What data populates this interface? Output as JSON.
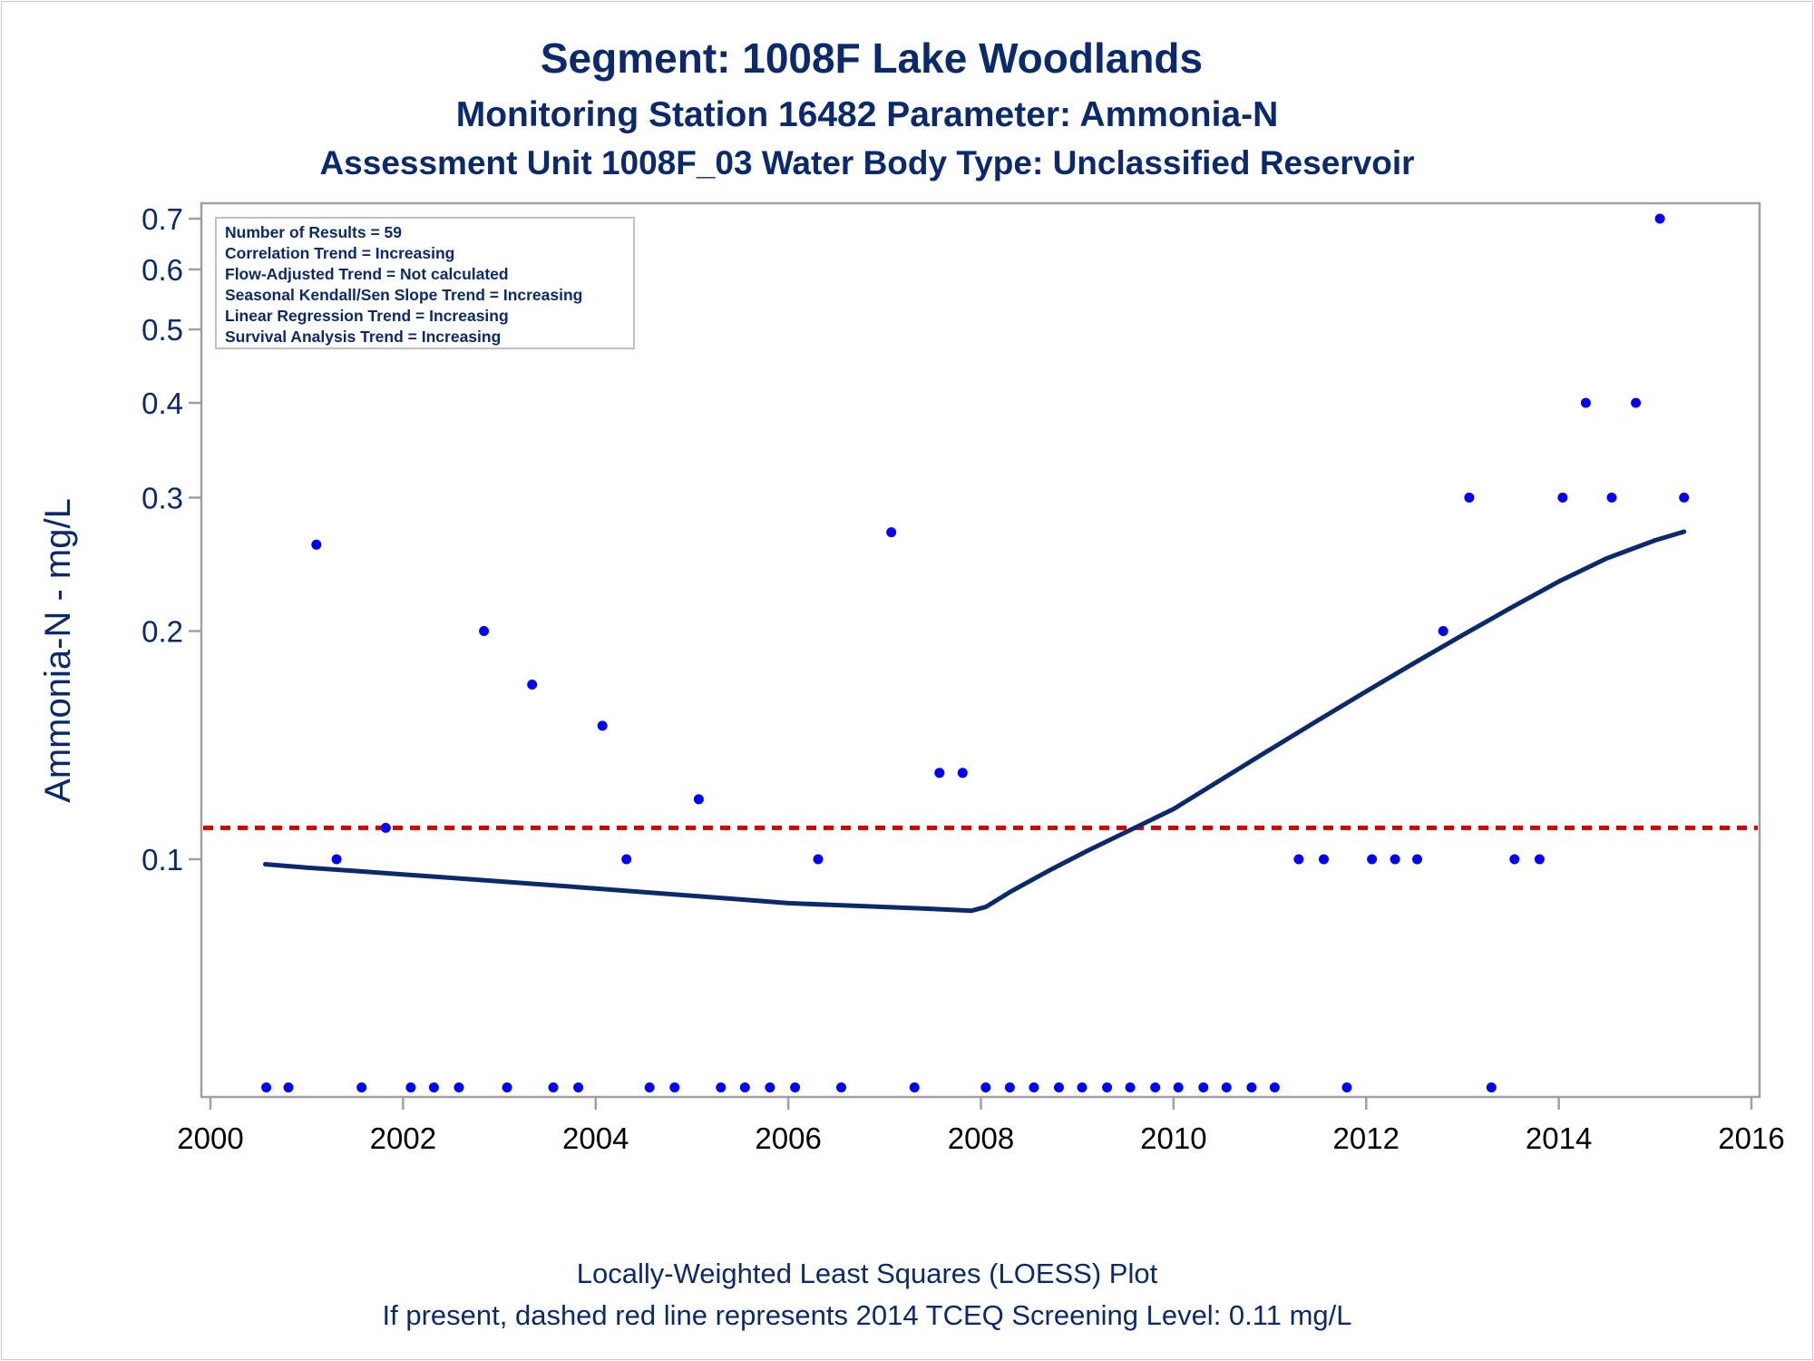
{
  "chart_data": {
    "type": "scatter",
    "title": "Segment: 1008F  Lake Woodlands",
    "subtitle": "Monitoring Station 16482 Parameter: Ammonia-N",
    "subtitle2": "Assessment Unit 1008F_03   Water Body Type: Unclassified Reservoir",
    "ylabel": "Ammonia-N - mg/L",
    "xlabel": "",
    "y_scale": "log",
    "xlim": [
      2000,
      2016
    ],
    "ylim": [
      0.05,
      0.72
    ],
    "x_ticks": [
      2000,
      2002,
      2004,
      2006,
      2008,
      2010,
      2012,
      2014,
      2016
    ],
    "x_tick_labels": [
      "2000",
      "2002",
      "2004",
      "2006",
      "2008",
      "2010",
      "2012",
      "2014",
      "2016"
    ],
    "y_ticks": [
      0.1,
      0.2,
      0.3,
      0.4,
      0.5,
      0.6,
      0.7
    ],
    "y_tick_labels": [
      "0.1",
      "0.2",
      "0.3",
      "0.4",
      "0.5",
      "0.6",
      "0.7"
    ],
    "grid": false,
    "colors": {
      "points": "#0000ff",
      "loess": "#0b2a6e",
      "screening": "#d60000",
      "text": "#0b2a6e",
      "frame": "#a0a0a0"
    },
    "inset_box": {
      "placement": "top-left",
      "lines": [
        "Number of Results = 59",
        "Correlation Trend = Increasing",
        "Flow-Adjusted Trend = Not calculated",
        "Seasonal Kendall/Sen Slope Trend = Increasing",
        "Linear Regression Trend = Increasing",
        "Survival Analysis Trend = Increasing"
      ]
    },
    "screening_level": 0.11,
    "series": [
      {
        "type": "scatter",
        "x": [
          2000.58,
          2000.81,
          2001.1,
          2001.31,
          2001.57,
          2001.82,
          2002.08,
          2002.32,
          2002.58,
          2002.84,
          2003.08,
          2003.34,
          2003.56,
          2003.82,
          2004.07,
          2004.32,
          2004.56,
          2004.82,
          2005.07,
          2005.3,
          2005.55,
          2005.81,
          2006.07,
          2006.31,
          2006.55,
          2007.07,
          2007.31,
          2007.57,
          2007.81,
          2008.05,
          2008.3,
          2008.55,
          2008.81,
          2009.05,
          2009.31,
          2009.55,
          2009.81,
          2010.05,
          2010.31,
          2010.55,
          2010.81,
          2011.05,
          2011.3,
          2011.56,
          2011.8,
          2012.06,
          2012.3,
          2012.53,
          2012.8,
          2013.07,
          2013.3,
          2013.54,
          2013.8,
          2014.04,
          2014.28,
          2014.55,
          2014.8,
          2015.05,
          2015.3
        ],
        "y": [
          0.05,
          0.05,
          0.26,
          0.1,
          0.05,
          0.11,
          0.05,
          0.05,
          0.05,
          0.2,
          0.05,
          0.17,
          0.05,
          0.05,
          0.15,
          0.1,
          0.05,
          0.05,
          0.12,
          0.05,
          0.05,
          0.05,
          0.05,
          0.1,
          0.05,
          0.27,
          0.05,
          0.13,
          0.13,
          0.05,
          0.05,
          0.05,
          0.05,
          0.05,
          0.05,
          0.05,
          0.05,
          0.05,
          0.05,
          0.05,
          0.05,
          0.05,
          0.1,
          0.1,
          0.05,
          0.1,
          0.1,
          0.1,
          0.2,
          0.3,
          0.05,
          0.1,
          0.1,
          0.3,
          0.4,
          0.3,
          0.4,
          0.7,
          0.3
        ]
      },
      {
        "type": "line",
        "x": [
          2000.57,
          2001.0,
          2001.5,
          2002.0,
          2002.5,
          2003.0,
          2003.5,
          2004.0,
          2004.5,
          2005.0,
          2005.5,
          2006.0,
          2006.5,
          2007.0,
          2007.5,
          2007.9,
          2008.05,
          2008.3,
          2008.7,
          2009.1,
          2009.5,
          2010.0,
          2010.5,
          2011.0,
          2011.5,
          2012.0,
          2012.5,
          2013.0,
          2013.5,
          2014.0,
          2014.5,
          2015.0,
          2015.3
        ],
        "y": [
          0.0985,
          0.0975,
          0.0965,
          0.0955,
          0.0945,
          0.0935,
          0.0925,
          0.0915,
          0.0905,
          0.0895,
          0.0885,
          0.0875,
          0.087,
          0.0865,
          0.086,
          0.0855,
          0.0865,
          0.0905,
          0.0965,
          0.1025,
          0.1085,
          0.1165,
          0.1275,
          0.1395,
          0.1525,
          0.1665,
          0.1815,
          0.1975,
          0.2145,
          0.2325,
          0.2495,
          0.2635,
          0.2705
        ]
      },
      {
        "type": "line",
        "style": "dashed",
        "x": [
          2000,
          2016
        ],
        "y": [
          0.11,
          0.11
        ]
      }
    ],
    "footnotes": [
      "Locally-Weighted Least Squares (LOESS) Plot",
      "If present, dashed red line represents 2014 TCEQ Screening Level: 0.11 mg/L"
    ]
  }
}
